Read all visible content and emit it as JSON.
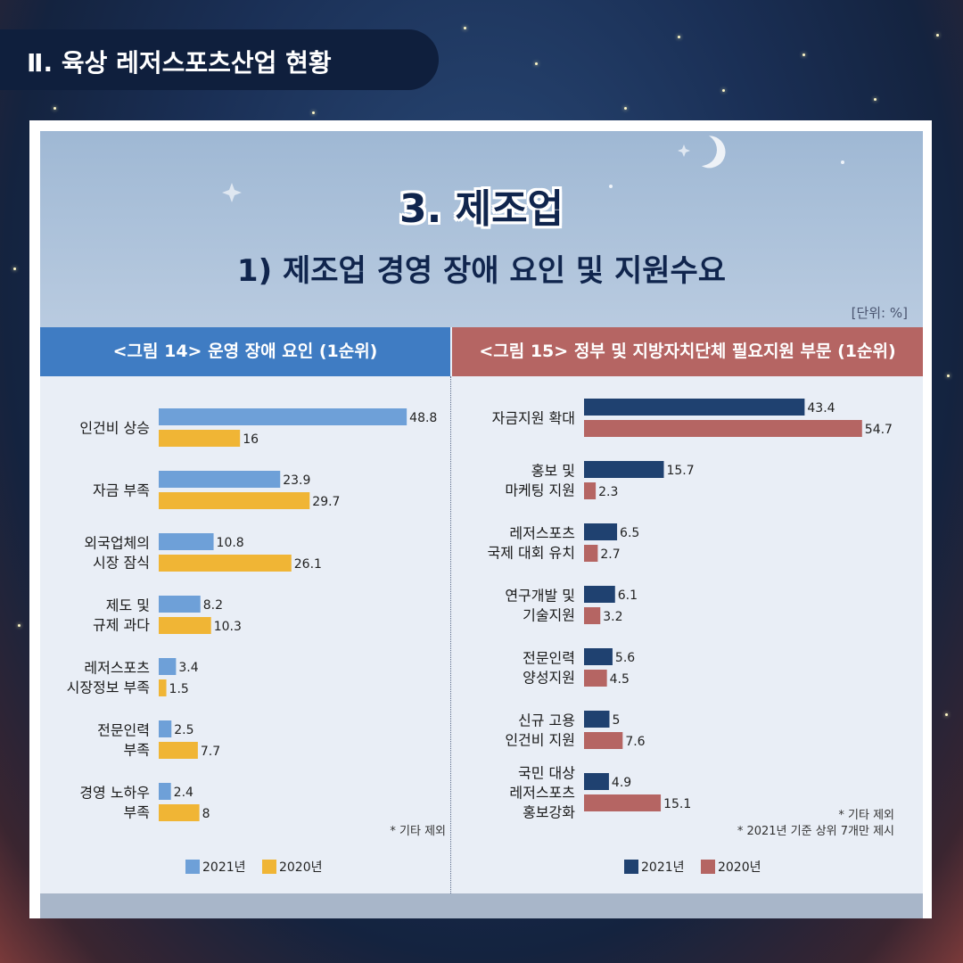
{
  "section_title": "Ⅱ. 육상 레저스포츠산업 현황",
  "hero": {
    "title": "3. 제조업",
    "subtitle": "1) 제조업 경영 장애 요인 및 지원수요"
  },
  "unit_label": "[단위: %]",
  "colors": {
    "left_2021": "#6ea0d8",
    "left_2020": "#f0b535",
    "right_2021": "#1f4170",
    "right_2020": "#b56563",
    "left_header": "#3f7cc3",
    "right_header": "#b56563"
  },
  "chart_data": [
    {
      "type": "bar",
      "orientation": "horizontal",
      "title": "<그림 14> 운영 장애 요인 (1순위)",
      "categories": [
        [
          "인건비 상승"
        ],
        [
          "자금 부족"
        ],
        [
          "외국업체의",
          "시장 잠식"
        ],
        [
          "제도 및",
          "규제 과다"
        ],
        [
          "레저스포츠",
          "시장정보 부족"
        ],
        [
          "전문인력",
          "부족"
        ],
        [
          "경영 노하우",
          "부족"
        ]
      ],
      "series": [
        {
          "name": "2021년",
          "values": [
            48.8,
            23.9,
            10.8,
            8.2,
            3.4,
            2.5,
            2.4
          ]
        },
        {
          "name": "2020년",
          "values": [
            16,
            29.7,
            26.1,
            10.3,
            1.5,
            7.7,
            8
          ]
        }
      ],
      "note": "* 기타 제외",
      "legend_position": "bottom"
    },
    {
      "type": "bar",
      "orientation": "horizontal",
      "title": "<그림 15> 정부 및 지방자치단체 필요지원 부문 (1순위)",
      "categories": [
        [
          "자금지원 확대"
        ],
        [
          "홍보 및",
          "마케팅 지원"
        ],
        [
          "레저스포츠",
          "국제 대회 유치"
        ],
        [
          "연구개발 및",
          "기술지원"
        ],
        [
          "전문인력",
          "양성지원"
        ],
        [
          "신규 고용",
          "인건비 지원"
        ],
        [
          "국민 대상",
          "레저스포츠",
          "홍보강화"
        ]
      ],
      "series": [
        {
          "name": "2021년",
          "values": [
            43.4,
            15.7,
            6.5,
            6.1,
            5.6,
            5,
            4.9
          ]
        },
        {
          "name": "2020년",
          "values": [
            54.7,
            2.3,
            2.7,
            3.2,
            4.5,
            7.6,
            15.1
          ]
        }
      ],
      "notes": [
        "* 기타 제외",
        "* 2021년 기준 상위 7개만 제시"
      ],
      "legend_position": "bottom"
    }
  ]
}
